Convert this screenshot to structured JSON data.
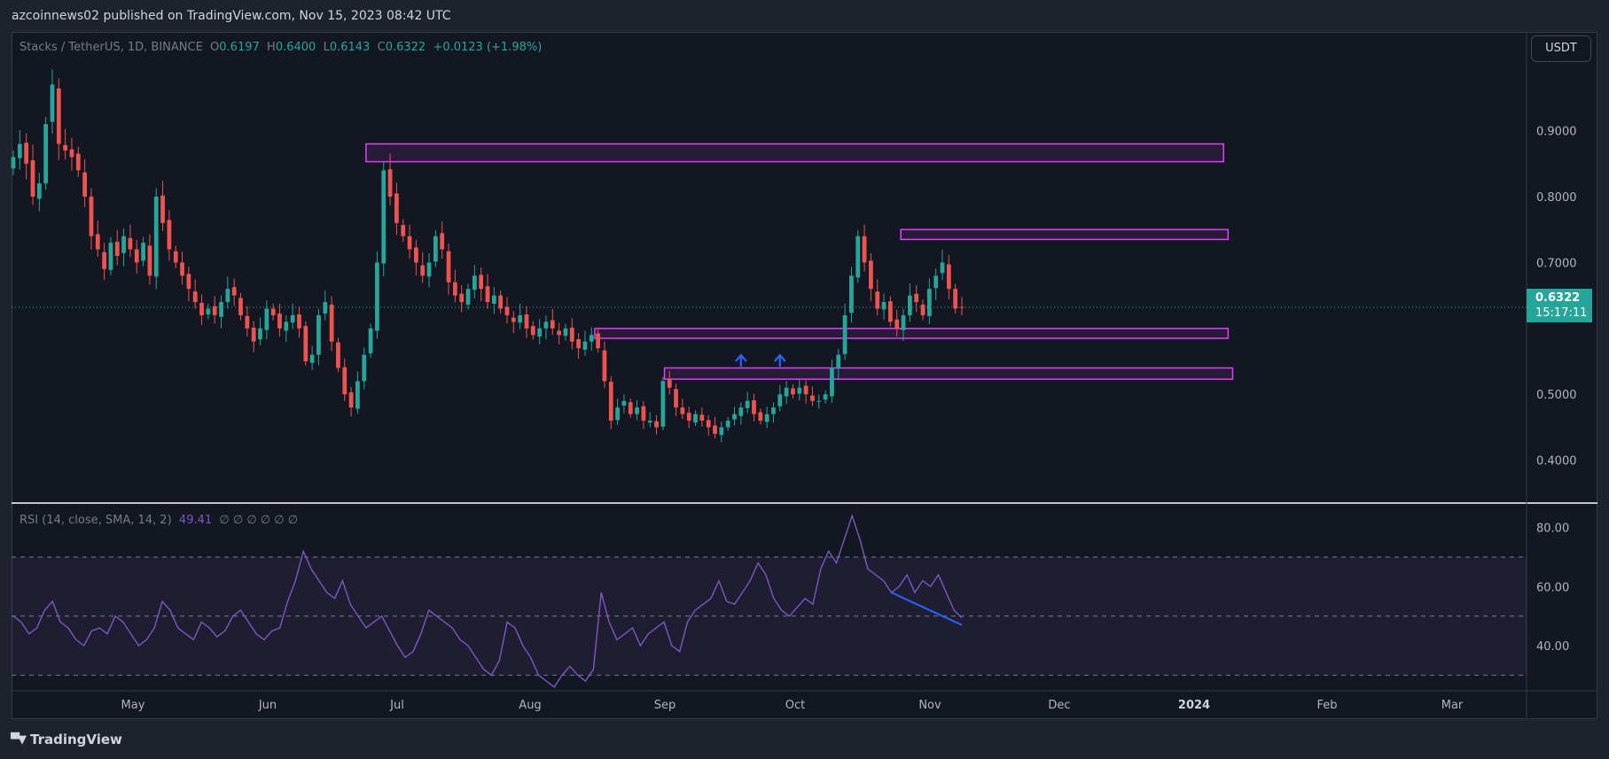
{
  "header": {
    "publish_text": "azcoinnews02 published on TradingView.com, Nov 15, 2023 08:42 UTC"
  },
  "legend": {
    "symbol": "Stacks / TetherUS, 1D, BINANCE",
    "o_label": "O",
    "o": "0.6197",
    "h_label": "H",
    "h": "0.6400",
    "l_label": "L",
    "l": "0.6143",
    "c_label": "C",
    "c": "0.6322",
    "change": "+0.0123 (+1.98%)"
  },
  "currency": "USDT",
  "last_price": {
    "price": "0.6322",
    "countdown": "15:17:11"
  },
  "rsi_legend": {
    "label": "RSI (14, close, SMA, 14, 2)",
    "value": "49.41",
    "placeholders": "∅ ∅ ∅ ∅ ∅ ∅"
  },
  "footer": {
    "brand": "TradingView"
  },
  "colors": {
    "up": "#26a69a",
    "down": "#ef5350",
    "zone": "#e040fb",
    "rsi_line": "#7e57c2",
    "divergence": "#2962ff",
    "arrow": "#2962ff"
  },
  "chart_data": [
    {
      "type": "candlestick",
      "title": "Stacks / TetherUS, 1D, BINANCE",
      "y_ticks": [
        "0.9000",
        "0.8000",
        "0.7000",
        "0.5000",
        "0.4000"
      ],
      "ylim": [
        0.335,
        1.05
      ],
      "x_ticks": [
        "May",
        "Jun",
        "Jul",
        "Aug",
        "Sep",
        "Oct",
        "Nov",
        "Dec",
        "2024",
        "Feb",
        "Mar"
      ],
      "last_close": 0.6322,
      "close_series": [
        0.86,
        0.88,
        0.85,
        0.8,
        0.82,
        0.91,
        0.97,
        0.88,
        0.87,
        0.86,
        0.84,
        0.8,
        0.74,
        0.72,
        0.69,
        0.73,
        0.71,
        0.74,
        0.72,
        0.7,
        0.73,
        0.68,
        0.8,
        0.76,
        0.72,
        0.7,
        0.68,
        0.66,
        0.64,
        0.62,
        0.63,
        0.62,
        0.64,
        0.66,
        0.65,
        0.62,
        0.6,
        0.58,
        0.6,
        0.63,
        0.62,
        0.6,
        0.61,
        0.62,
        0.6,
        0.55,
        0.56,
        0.62,
        0.64,
        0.58,
        0.54,
        0.5,
        0.48,
        0.52,
        0.56,
        0.6,
        0.7,
        0.84,
        0.8,
        0.76,
        0.74,
        0.72,
        0.7,
        0.68,
        0.7,
        0.74,
        0.72,
        0.67,
        0.65,
        0.64,
        0.66,
        0.68,
        0.66,
        0.64,
        0.65,
        0.63,
        0.62,
        0.61,
        0.62,
        0.6,
        0.59,
        0.6,
        0.61,
        0.6,
        0.59,
        0.6,
        0.58,
        0.57,
        0.58,
        0.59,
        0.57,
        0.52,
        0.46,
        0.48,
        0.49,
        0.47,
        0.48,
        0.46,
        0.46,
        0.45,
        0.52,
        0.51,
        0.48,
        0.47,
        0.46,
        0.47,
        0.46,
        0.45,
        0.44,
        0.45,
        0.46,
        0.47,
        0.48,
        0.49,
        0.47,
        0.46,
        0.47,
        0.48,
        0.5,
        0.51,
        0.5,
        0.51,
        0.5,
        0.49,
        0.49,
        0.5,
        0.54,
        0.56,
        0.62,
        0.68,
        0.74,
        0.7,
        0.66,
        0.63,
        0.64,
        0.61,
        0.6,
        0.62,
        0.65,
        0.64,
        0.62,
        0.66,
        0.68,
        0.7,
        0.66,
        0.63,
        0.6322
      ],
      "zones": [
        {
          "low": 0.853,
          "high": 0.88,
          "start": 0.234,
          "end": 0.8
        },
        {
          "low": 0.735,
          "high": 0.75,
          "start": 0.587,
          "end": 0.803
        },
        {
          "low": 0.585,
          "high": 0.6,
          "start": 0.385,
          "end": 0.803
        },
        {
          "low": 0.523,
          "high": 0.54,
          "start": 0.431,
          "end": 0.806
        }
      ],
      "markers": [
        {
          "type": "arrow-up",
          "index": 112
        },
        {
          "type": "arrow-up",
          "index": 118
        }
      ]
    },
    {
      "type": "line",
      "title": "RSI (14, close, SMA, 14, 2)",
      "y_ticks": [
        "80.00",
        "60.00",
        "40.00"
      ],
      "ylim": [
        25,
        88
      ],
      "band": [
        30,
        70
      ],
      "midline": 50,
      "latest": 49.41,
      "values": [
        50,
        48,
        44,
        46,
        52,
        55,
        48,
        46,
        42,
        40,
        45,
        46,
        44,
        50,
        48,
        44,
        40,
        42,
        46,
        55,
        52,
        46,
        44,
        42,
        48,
        46,
        43,
        45,
        50,
        52,
        48,
        44,
        42,
        45,
        46,
        55,
        62,
        72,
        66,
        62,
        58,
        56,
        62,
        54,
        50,
        46,
        48,
        50,
        45,
        40,
        36,
        38,
        44,
        52,
        50,
        48,
        46,
        42,
        40,
        36,
        32,
        30,
        35,
        48,
        46,
        40,
        36,
        30,
        28,
        26,
        30,
        33,
        30,
        28,
        32,
        58,
        48,
        42,
        44,
        46,
        40,
        44,
        46,
        48,
        40,
        38,
        48,
        52,
        54,
        56,
        62,
        55,
        54,
        58,
        62,
        68,
        64,
        56,
        52,
        50,
        53,
        56,
        54,
        66,
        72,
        68,
        76,
        84,
        76,
        66,
        64,
        62,
        58,
        60,
        64,
        58,
        62,
        60,
        64,
        58,
        52,
        49.41
      ],
      "divergence": {
        "from_index": 112,
        "to_index": 121,
        "from_value": 58,
        "to_value": 47
      }
    }
  ]
}
